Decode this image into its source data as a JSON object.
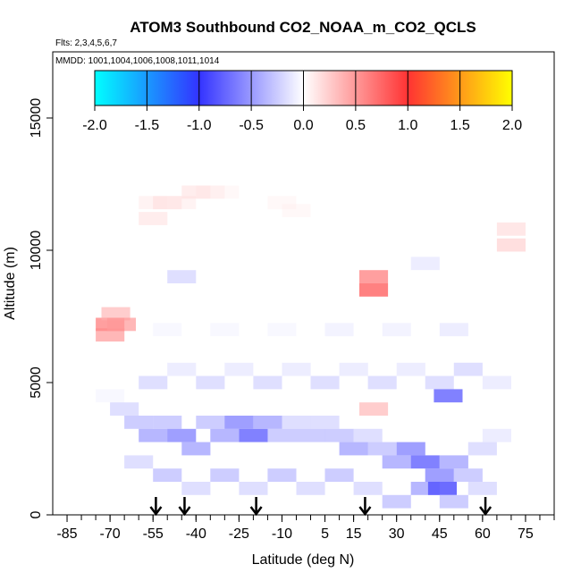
{
  "chart_data": {
    "type": "heatmap",
    "title": "ATOM3 Southbound CO2_NOAA_m_CO2_QCLS",
    "subtitle_flights": "Flts: 2,3,4,5,6,7",
    "subtitle_dates": "MMDD: 1001,1004,1006,1008,1011,1014",
    "xlabel": "Latitude (deg N)",
    "ylabel": "Altitude (m)",
    "xlim": [
      -90,
      85
    ],
    "ylim": [
      0,
      17500
    ],
    "x_tick_labels": [
      "-85",
      "-70",
      "-55",
      "-40",
      "-25",
      "-10",
      "5",
      "15",
      "30",
      "45",
      "60",
      "75"
    ],
    "x_tick_values": [
      -85,
      -70,
      -55,
      -40,
      -25,
      -10,
      5,
      15,
      30,
      45,
      60,
      75
    ],
    "y_tick_labels": [
      "0",
      "5000",
      "10000",
      "15000"
    ],
    "y_tick_values": [
      0,
      5000,
      10000,
      15000
    ],
    "colorbar": {
      "range": [
        -2.0,
        2.0
      ],
      "tick_labels": [
        "-2.0",
        "-1.5",
        "-1.0",
        "-0.5",
        "0.0",
        "0.5",
        "1.0",
        "1.5",
        "2.0"
      ],
      "tick_values": [
        -2.0,
        -1.5,
        -1.0,
        -0.5,
        0.0,
        0.5,
        1.0,
        1.5,
        2.0
      ],
      "colors": [
        "#00ffff",
        "#3333ff",
        "#ffffff",
        "#ff3333",
        "#ffff00"
      ]
    },
    "arrow_latitudes": [
      -54,
      -44,
      -19,
      19,
      61
    ],
    "cells": [
      [
        -70,
        6800,
        0.5
      ],
      [
        -70,
        7200,
        0.6
      ],
      [
        -68,
        7600,
        0.4
      ],
      [
        -66,
        7200,
        0.5
      ],
      [
        -55,
        11800,
        0.15
      ],
      [
        -50,
        11800,
        0.2
      ],
      [
        -45,
        11800,
        0.15
      ],
      [
        -40,
        12200,
        0.2
      ],
      [
        -35,
        12200,
        0.15
      ],
      [
        -30,
        12200,
        0.1
      ],
      [
        -55,
        11200,
        0.2
      ],
      [
        -10,
        11800,
        0.1
      ],
      [
        -5,
        11500,
        0.1
      ],
      [
        22,
        8500,
        0.7
      ],
      [
        22,
        9000,
        0.6
      ],
      [
        70,
        10200,
        0.3
      ],
      [
        70,
        10800,
        0.25
      ],
      [
        22,
        4000,
        0.4
      ],
      [
        -70,
        4500,
        -0.1
      ],
      [
        -65,
        4000,
        -0.3
      ],
      [
        -60,
        3500,
        -0.4
      ],
      [
        -55,
        3000,
        -0.5
      ],
      [
        -50,
        3500,
        -0.4
      ],
      [
        -45,
        3000,
        -0.6
      ],
      [
        -40,
        2500,
        -0.5
      ],
      [
        -35,
        3500,
        -0.4
      ],
      [
        -30,
        3000,
        -0.5
      ],
      [
        -25,
        3500,
        -0.6
      ],
      [
        -20,
        3000,
        -0.7
      ],
      [
        -15,
        3500,
        -0.5
      ],
      [
        -10,
        3000,
        -0.4
      ],
      [
        -5,
        3500,
        -0.3
      ],
      [
        0,
        3000,
        -0.4
      ],
      [
        5,
        3500,
        -0.3
      ],
      [
        10,
        3000,
        -0.4
      ],
      [
        15,
        2500,
        -0.5
      ],
      [
        20,
        3000,
        -0.3
      ],
      [
        25,
        2500,
        -0.4
      ],
      [
        30,
        2000,
        -0.5
      ],
      [
        35,
        2500,
        -0.6
      ],
      [
        40,
        2000,
        -0.7
      ],
      [
        45,
        1500,
        -0.6
      ],
      [
        50,
        2000,
        -0.5
      ],
      [
        55,
        1500,
        -0.4
      ],
      [
        60,
        2500,
        -0.3
      ],
      [
        65,
        3000,
        -0.2
      ],
      [
        -60,
        2000,
        -0.3
      ],
      [
        -50,
        1500,
        -0.4
      ],
      [
        -40,
        1000,
        -0.3
      ],
      [
        -30,
        1500,
        -0.4
      ],
      [
        -20,
        1000,
        -0.3
      ],
      [
        -10,
        1500,
        -0.4
      ],
      [
        0,
        1000,
        -0.3
      ],
      [
        10,
        1500,
        -0.4
      ],
      [
        20,
        1000,
        -0.3
      ],
      [
        30,
        500,
        -0.4
      ],
      [
        40,
        1000,
        -0.5
      ],
      [
        46,
        1000,
        -0.8
      ],
      [
        50,
        500,
        -0.4
      ],
      [
        60,
        1000,
        -0.3
      ],
      [
        -55,
        5000,
        -0.3
      ],
      [
        -45,
        5500,
        -0.2
      ],
      [
        -35,
        5000,
        -0.3
      ],
      [
        -25,
        5500,
        -0.2
      ],
      [
        -15,
        5000,
        -0.3
      ],
      [
        -5,
        5500,
        -0.2
      ],
      [
        5,
        5000,
        -0.3
      ],
      [
        15,
        5500,
        -0.2
      ],
      [
        25,
        5000,
        -0.3
      ],
      [
        35,
        5500,
        -0.2
      ],
      [
        45,
        5000,
        -0.3
      ],
      [
        48,
        4500,
        -0.7
      ],
      [
        55,
        5500,
        -0.3
      ],
      [
        65,
        5000,
        -0.2
      ],
      [
        -50,
        7000,
        -0.1
      ],
      [
        -30,
        7000,
        -0.1
      ],
      [
        -10,
        7000,
        -0.1
      ],
      [
        10,
        7000,
        -0.15
      ],
      [
        30,
        7000,
        -0.15
      ],
      [
        50,
        7000,
        -0.2
      ],
      [
        -45,
        9000,
        -0.3
      ],
      [
        40,
        9500,
        -0.2
      ]
    ]
  }
}
